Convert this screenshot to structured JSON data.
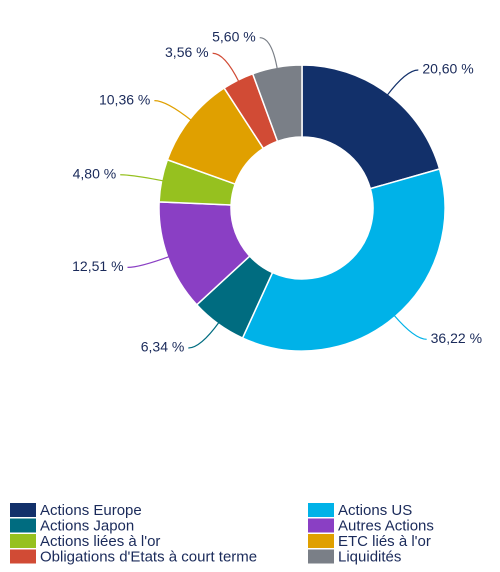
{
  "chart_data": {
    "type": "pie",
    "categories": [
      "Actions Europe",
      "Actions US",
      "Actions Japon",
      "Autres Actions",
      "Actions liées à l'or",
      "ETC liés à l'or",
      "Obligations d'Etats à court terme",
      "Liquidités"
    ],
    "values": [
      20.6,
      36.22,
      6.34,
      12.51,
      4.8,
      10.36,
      3.56,
      5.6
    ],
    "value_labels": [
      "20,60 %",
      "36,22 %",
      "6,34 %",
      "12,51 %",
      "4,80 %",
      "10,36 %",
      "3,56 %",
      "5,60 %"
    ],
    "colors": [
      "#12306a",
      "#00b2e8",
      "#006c80",
      "#8a3fc4",
      "#96c11f",
      "#e0a000",
      "#d14b35",
      "#7a7f87"
    ],
    "legend": "bottom"
  }
}
